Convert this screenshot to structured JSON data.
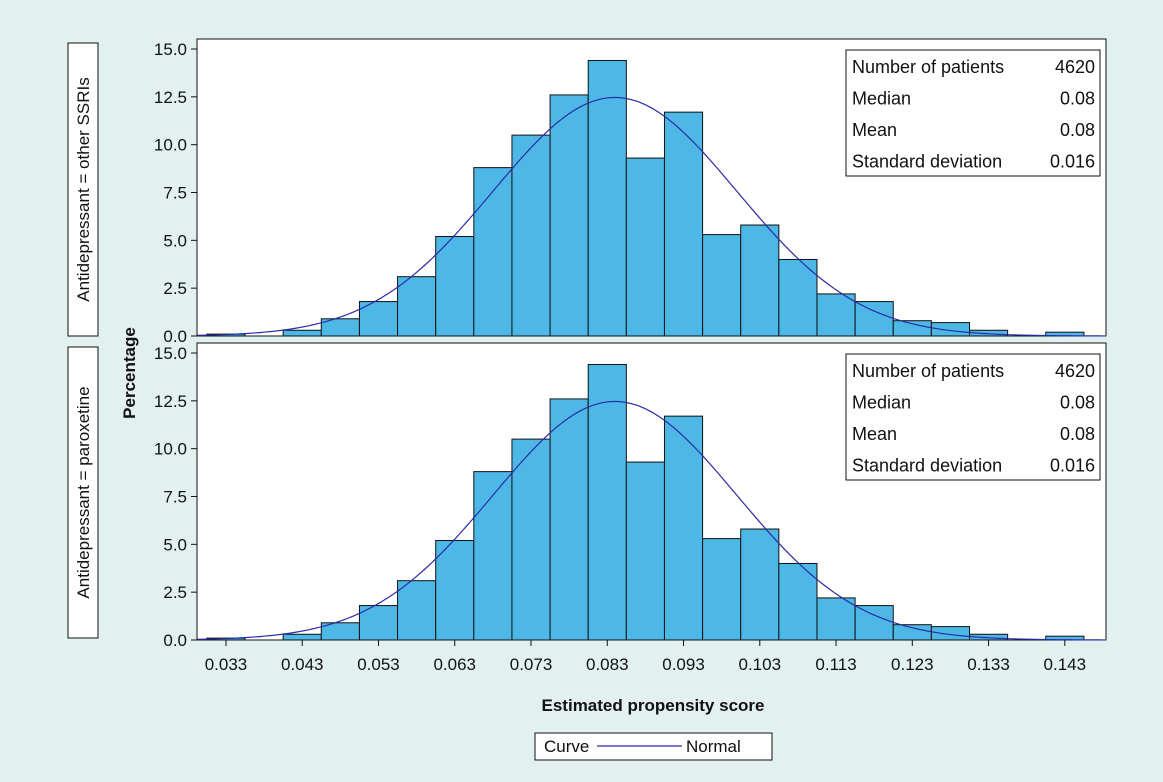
{
  "colors": {
    "background": "#e2f1ef",
    "plot_background": "#ffffff",
    "bar_fill": "#4db8e6",
    "bar_stroke": "#111111",
    "curve": "#2b2ba8"
  },
  "chart_data": {
    "type": "bar",
    "chart_subtype": "histogram",
    "ylabel": "Percentage",
    "xlabel": "Estimated propensity score",
    "x_ticks": [
      "0.033",
      "0.043",
      "0.053",
      "0.063",
      "0.073",
      "0.083",
      "0.093",
      "0.103",
      "0.113",
      "0.123",
      "0.133",
      "0.143"
    ],
    "x_tick_values": [
      0.033,
      0.043,
      0.053,
      0.063,
      0.073,
      0.083,
      0.093,
      0.103,
      0.113,
      0.123,
      0.133,
      0.143
    ],
    "xlim": [
      0.0292,
      0.1484
    ],
    "bin_width": 0.005,
    "ylim": [
      0,
      15
    ],
    "y_ticks": [
      "0.0",
      "2.5",
      "5.0",
      "7.5",
      "10.0",
      "12.5",
      "15.0"
    ],
    "y_tick_values": [
      0,
      2.5,
      5,
      7.5,
      10,
      12.5,
      15
    ],
    "grid": false,
    "legend": {
      "position": "bottom",
      "title": "Curve",
      "entries": [
        {
          "name": "Normal",
          "line": "curve"
        }
      ]
    },
    "panels": [
      {
        "label": "Antidepressant = other SSRIs",
        "bins": [
          {
            "x": 0.033,
            "value": 0.1
          },
          {
            "x": 0.038,
            "value": 0.0
          },
          {
            "x": 0.043,
            "value": 0.3
          },
          {
            "x": 0.048,
            "value": 0.9
          },
          {
            "x": 0.053,
            "value": 1.8
          },
          {
            "x": 0.058,
            "value": 3.1
          },
          {
            "x": 0.063,
            "value": 5.2
          },
          {
            "x": 0.068,
            "value": 8.8
          },
          {
            "x": 0.073,
            "value": 10.5
          },
          {
            "x": 0.078,
            "value": 12.6
          },
          {
            "x": 0.083,
            "value": 14.4
          },
          {
            "x": 0.088,
            "value": 9.3
          },
          {
            "x": 0.093,
            "value": 11.7
          },
          {
            "x": 0.098,
            "value": 5.3
          },
          {
            "x": 0.103,
            "value": 5.8
          },
          {
            "x": 0.108,
            "value": 4.0
          },
          {
            "x": 0.113,
            "value": 2.2
          },
          {
            "x": 0.118,
            "value": 1.8
          },
          {
            "x": 0.123,
            "value": 0.8
          },
          {
            "x": 0.128,
            "value": 0.7
          },
          {
            "x": 0.133,
            "value": 0.3
          },
          {
            "x": 0.138,
            "value": 0.0
          },
          {
            "x": 0.143,
            "value": 0.2
          }
        ],
        "normal_curve": {
          "mean": 0.084,
          "sd": 0.016
        },
        "stats": [
          {
            "label": "Number of patients",
            "value": "4620"
          },
          {
            "label": "Median",
            "value": "0.08"
          },
          {
            "label": "Mean",
            "value": "0.08"
          },
          {
            "label": "Standard deviation",
            "value": "0.016"
          }
        ]
      },
      {
        "label": "Antidepressant = paroxetine",
        "bins": [
          {
            "x": 0.033,
            "value": 0.1
          },
          {
            "x": 0.038,
            "value": 0.0
          },
          {
            "x": 0.043,
            "value": 0.3
          },
          {
            "x": 0.048,
            "value": 0.9
          },
          {
            "x": 0.053,
            "value": 1.8
          },
          {
            "x": 0.058,
            "value": 3.1
          },
          {
            "x": 0.063,
            "value": 5.2
          },
          {
            "x": 0.068,
            "value": 8.8
          },
          {
            "x": 0.073,
            "value": 10.5
          },
          {
            "x": 0.078,
            "value": 12.6
          },
          {
            "x": 0.083,
            "value": 14.4
          },
          {
            "x": 0.088,
            "value": 9.3
          },
          {
            "x": 0.093,
            "value": 11.7
          },
          {
            "x": 0.098,
            "value": 5.3
          },
          {
            "x": 0.103,
            "value": 5.8
          },
          {
            "x": 0.108,
            "value": 4.0
          },
          {
            "x": 0.113,
            "value": 2.2
          },
          {
            "x": 0.118,
            "value": 1.8
          },
          {
            "x": 0.123,
            "value": 0.8
          },
          {
            "x": 0.128,
            "value": 0.7
          },
          {
            "x": 0.133,
            "value": 0.3
          },
          {
            "x": 0.138,
            "value": 0.0
          },
          {
            "x": 0.143,
            "value": 0.2
          }
        ],
        "normal_curve": {
          "mean": 0.084,
          "sd": 0.016
        },
        "stats": [
          {
            "label": "Number of patients",
            "value": "4620"
          },
          {
            "label": "Median",
            "value": "0.08"
          },
          {
            "label": "Mean",
            "value": "0.08"
          },
          {
            "label": "Standard deviation",
            "value": "0.016"
          }
        ]
      }
    ]
  }
}
